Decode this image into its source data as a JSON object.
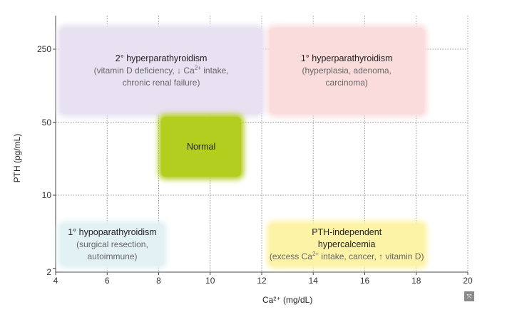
{
  "chart_data": {
    "type": "region-diagram",
    "xlabel": "Ca²⁺ (mg/dL)",
    "ylabel": "PTH (pg/mL)",
    "x_ticks": [
      "4",
      "6",
      "8",
      "10",
      "12",
      "14",
      "16",
      "18",
      "20"
    ],
    "y_ticks": [
      "2",
      "10",
      "50",
      "250"
    ],
    "xlim": [
      4,
      20
    ],
    "y_scale": "log",
    "grid": true,
    "regions": [
      {
        "title": "2° hyperparathyroidism",
        "desc": [
          "(vitamin D deficiency, ↓ Ca²⁺ intake,",
          "chronic renal failure)"
        ],
        "x_range": [
          4.2,
          12.0
        ],
        "y_range": [
          60,
          400
        ],
        "color": "#e7e1f1"
      },
      {
        "title": "1° hyperparathyroidism",
        "desc": [
          "(hyperplasia, adenoma,",
          "carcinoma)"
        ],
        "x_range": [
          12.3,
          18.3
        ],
        "y_range": [
          60,
          400
        ],
        "color": "#fbdcdc"
      },
      {
        "title": "Normal",
        "desc": [],
        "x_range": [
          8.1,
          11.2
        ],
        "y_range": [
          15,
          56
        ],
        "color": "#b4ce1f"
      },
      {
        "title": "1° hypoparathyroidism",
        "desc": [
          "(surgical resection,",
          "autoimmune)"
        ],
        "x_range": [
          4.2,
          8.2
        ],
        "y_range": [
          2.1,
          5.3
        ],
        "color": "#e2f2f4"
      },
      {
        "title": "PTH-independent hypercalcemia",
        "desc": [
          "(excess Ca²⁺ intake, cancer, ↑ vitamin D)"
        ],
        "x_range": [
          12.3,
          18.3
        ],
        "y_range": [
          2.1,
          5.3
        ],
        "color": "#fdf3a6"
      }
    ]
  },
  "colors": {
    "grid": "#9a9a9a",
    "axis": "#444444"
  },
  "corner_icon": {
    "name": "expand-icon",
    "glyph": "⤧"
  }
}
